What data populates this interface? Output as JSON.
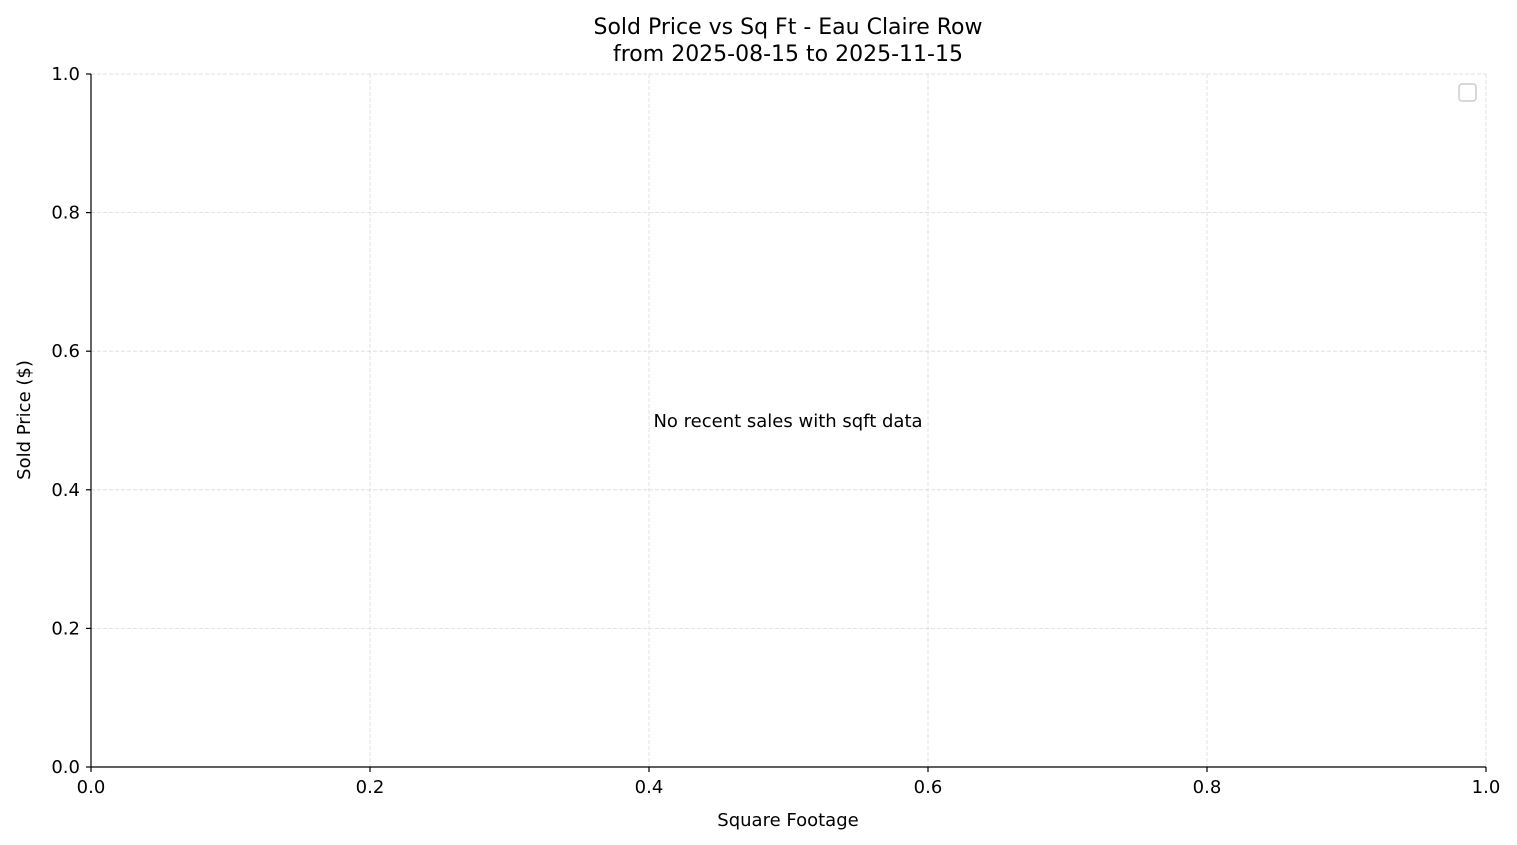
{
  "chart_data": {
    "type": "scatter",
    "title": "Sold Price vs Sq Ft - Eau Claire Row",
    "subtitle": "from 2025-08-15 to 2025-11-15",
    "xlabel": "Square Footage",
    "ylabel": "Sold Price ($)",
    "xlim": [
      0,
      1
    ],
    "ylim": [
      0,
      1
    ],
    "xticks": [
      "0.0",
      "0.2",
      "0.4",
      "0.6",
      "0.8",
      "1.0"
    ],
    "yticks": [
      "0.0",
      "0.2",
      "0.4",
      "0.6",
      "0.8",
      "1.0"
    ],
    "grid": true,
    "legend": "top-right",
    "annotation": "No recent sales with sqft data",
    "series": []
  }
}
